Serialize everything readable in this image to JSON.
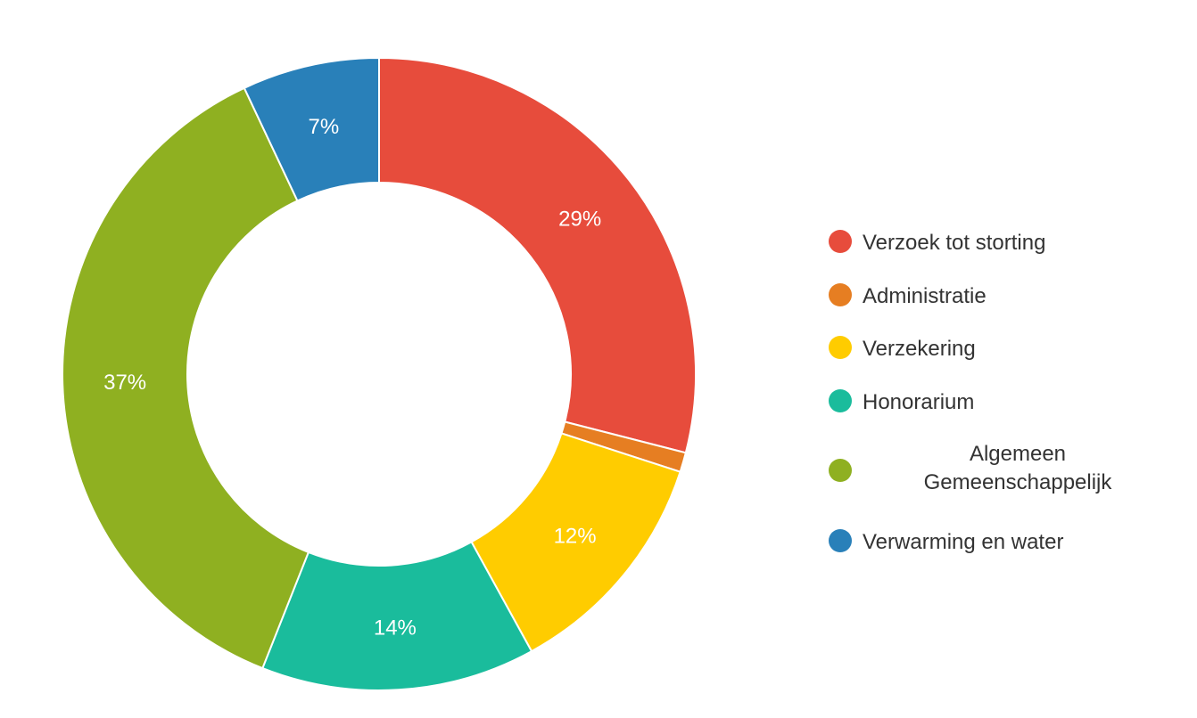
{
  "chart_data": {
    "type": "pie",
    "variant": "donut",
    "legend_position": "right",
    "slices": [
      {
        "label": "Verzoek tot storting",
        "value": 29,
        "display": "29%",
        "color": "#e74c3c"
      },
      {
        "label": "Administratie",
        "value": 1,
        "display": "",
        "color": "#e67e22"
      },
      {
        "label": "Verzekering",
        "value": 12,
        "display": "12%",
        "color": "#ffcc00"
      },
      {
        "label": "Honorarium",
        "value": 14,
        "display": "14%",
        "color": "#1abc9c"
      },
      {
        "label": "Algemeen Gemeenschappelijk",
        "value": 37,
        "display": "37%",
        "color": "#8fb021"
      },
      {
        "label": "Verwarming en water",
        "value": 7,
        "display": "7%",
        "color": "#2980b9"
      }
    ]
  }
}
